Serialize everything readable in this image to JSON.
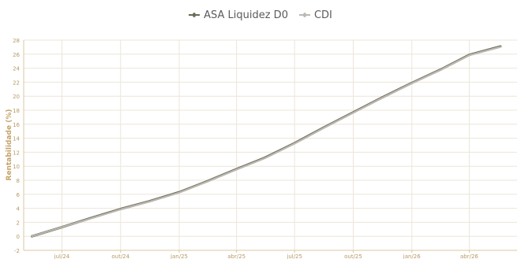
{
  "colors": {
    "asa": "#6b6b58",
    "cdi": "#bdb8b2",
    "grid": "#ece6da",
    "axis": "#d9c7a2",
    "tick": "#b59a66"
  },
  "chart_data": {
    "type": "line",
    "title": "",
    "xlabel": "",
    "ylabel": "Rentabilidade (%)",
    "ylim": [
      -2,
      28
    ],
    "yticks": [
      -2,
      0,
      2,
      4,
      6,
      8,
      10,
      12,
      14,
      16,
      18,
      20,
      22,
      24,
      26,
      28
    ],
    "xlim": [
      "2024-05-02",
      "2026-06-15"
    ],
    "xticks": [
      {
        "date": "2024-07-01",
        "label": "jul/24"
      },
      {
        "date": "2024-10-01",
        "label": "out/24"
      },
      {
        "date": "2025-01-01",
        "label": "jan/25"
      },
      {
        "date": "2025-04-01",
        "label": "abr/25"
      },
      {
        "date": "2025-07-01",
        "label": "jul/25"
      },
      {
        "date": "2025-10-01",
        "label": "out/25"
      },
      {
        "date": "2026-01-01",
        "label": "jan/26"
      },
      {
        "date": "2026-04-01",
        "label": "abr/26"
      }
    ],
    "grid": true,
    "legend_position": "top",
    "series": [
      {
        "name": "ASA Liquidez D0",
        "color": "#6b6b58",
        "points": [
          [
            "2024-05-15",
            0.0
          ],
          [
            "2024-07-01",
            1.3
          ],
          [
            "2024-08-15",
            2.6
          ],
          [
            "2024-10-01",
            3.9
          ],
          [
            "2024-11-15",
            5.0
          ],
          [
            "2025-01-01",
            6.3
          ],
          [
            "2025-02-15",
            7.9
          ],
          [
            "2025-04-01",
            9.6
          ],
          [
            "2025-05-15",
            11.2
          ],
          [
            "2025-07-01",
            13.3
          ],
          [
            "2025-08-15",
            15.5
          ],
          [
            "2025-10-01",
            17.7
          ],
          [
            "2025-11-15",
            19.8
          ],
          [
            "2026-01-01",
            21.9
          ],
          [
            "2026-02-15",
            23.8
          ],
          [
            "2026-04-01",
            25.9
          ],
          [
            "2026-05-20",
            27.1
          ]
        ]
      },
      {
        "name": "CDI",
        "color": "#bdb8b2",
        "points": [
          [
            "2024-05-15",
            0.0
          ],
          [
            "2024-07-01",
            1.3
          ],
          [
            "2024-08-15",
            2.55
          ],
          [
            "2024-10-01",
            3.85
          ],
          [
            "2024-11-15",
            4.95
          ],
          [
            "2025-01-01",
            6.25
          ],
          [
            "2025-02-15",
            7.85
          ],
          [
            "2025-04-01",
            9.55
          ],
          [
            "2025-05-15",
            11.15
          ],
          [
            "2025-07-01",
            13.25
          ],
          [
            "2025-08-15",
            15.45
          ],
          [
            "2025-10-01",
            17.65
          ],
          [
            "2025-11-15",
            19.75
          ],
          [
            "2026-01-01",
            21.85
          ],
          [
            "2026-02-15",
            23.75
          ],
          [
            "2026-04-01",
            25.85
          ],
          [
            "2026-05-20",
            27.05
          ]
        ]
      }
    ]
  }
}
